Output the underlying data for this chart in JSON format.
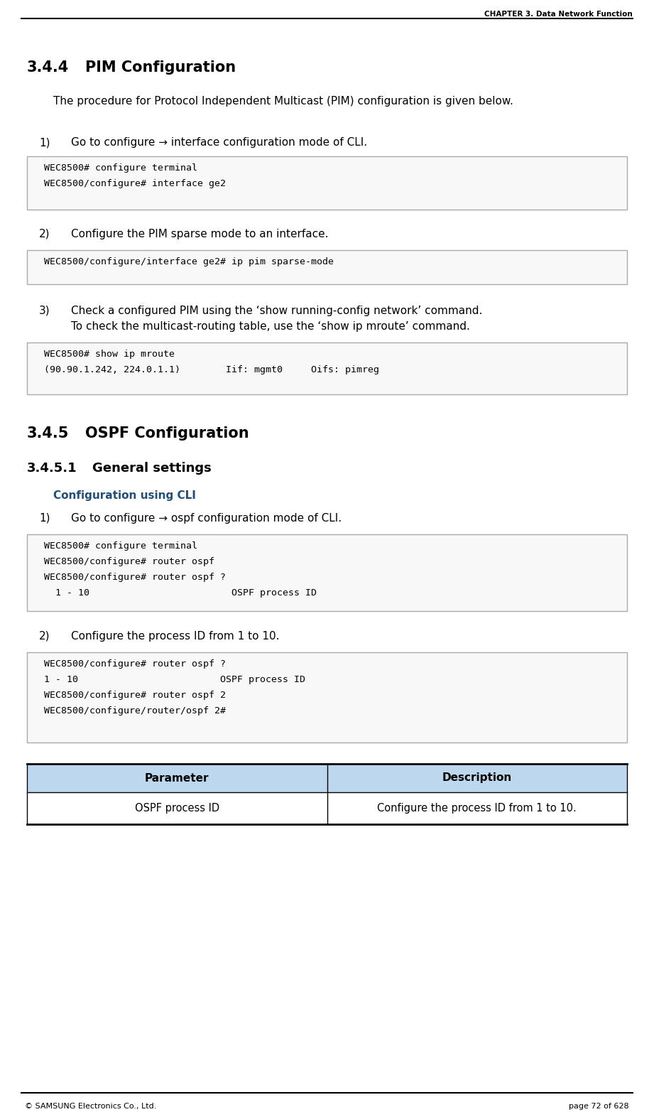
{
  "header_text": "CHAPTER 3. Data Network Function",
  "footer_left": "© SAMSUNG Electronics Co., Ltd.",
  "footer_right": "page 72 of 628",
  "section_344_title": "3.4.4    PIM Configuration",
  "section_344_intro": "The procedure for Protocol Independent Multicast (PIM) configuration is given below.",
  "step1_text": "1)    Go to configure → interface configuration mode of CLI.",
  "code_block_1": "WEC8500# configure terminal\nWEC8500/configure# interface ge2",
  "step2_text": "2)    Configure the PIM sparse mode to an interface.",
  "code_block_2": "WEC8500/configure/interface ge2# ip pim sparse-mode",
  "step3_text_line1": "3)    Check a configured PIM using the ‘show running-config network’ command.",
  "step3_text_line2": "        To check the multicast-routing table, use the ‘show ip mroute’ command.",
  "code_block_3": "WEC8500# show ip mroute\n(90.90.1.242, 224.0.1.1)        Iif: mgmt0     Oifs: pimreg",
  "section_345_title": "3.4.5    OSPF Configuration",
  "section_3451_title": "3.4.5.1    General settings",
  "config_cli_label": "Configuration using CLI",
  "ospf_step1_text": "1)    Go to configure → ospf configuration mode of CLI.",
  "code_block_4": "WEC8500# configure terminal\nWEC8500/configure# router ospf\nWEC8500/configure# router ospf ?\n  1 - 10                         OSPF process ID",
  "ospf_step2_text": "2)    Configure the process ID from 1 to 10.",
  "code_block_5": "WEC8500/configure# router ospf ?\n1 - 10                         OSPF process ID\nWEC8500/configure# router ospf 2\nWEC8500/configure/router/ospf 2#",
  "table_header_col1": "Parameter",
  "table_header_col2": "Description",
  "table_row_col1": "OSPF process ID",
  "table_row_col2": "Configure the process ID from 1 to 10.",
  "bg_color": "#ffffff",
  "code_bg_color": "#f8f8f8",
  "header_line_color": "#000000",
  "table_header_bg": "#bdd7ee",
  "table_border_color": "#000000",
  "table_bottom_line_color": "#000000",
  "code_border_color": "#aaaaaa",
  "config_cli_color": "#1f4e79",
  "text_color": "#000000"
}
